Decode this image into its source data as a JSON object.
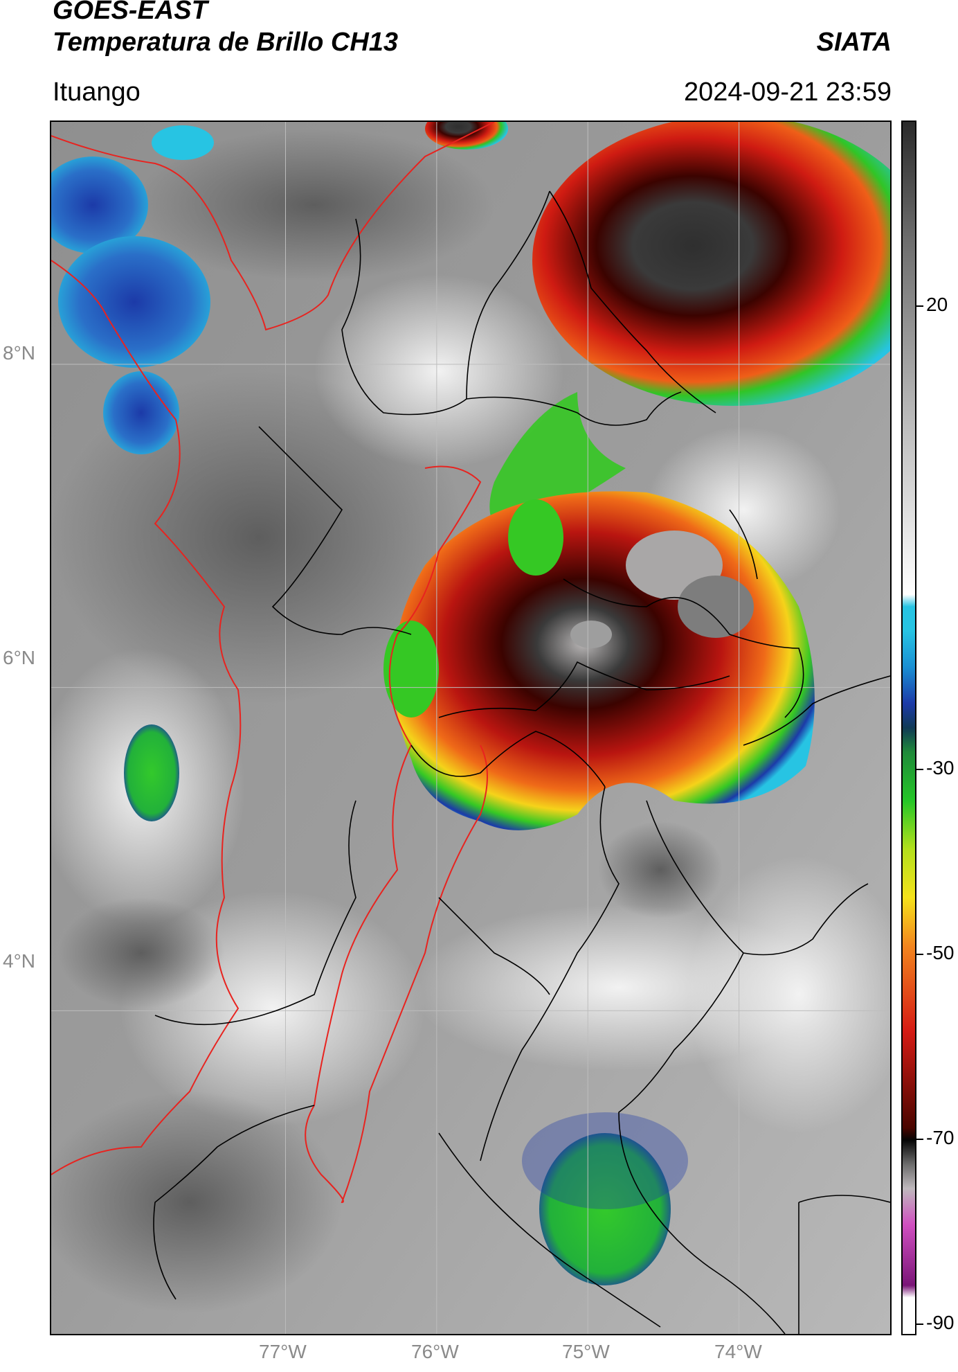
{
  "header": {
    "satellite": "GOES-EAST",
    "product": "Temperatura de Brillo CH13",
    "organization": "SIATA",
    "region": "Ituango",
    "timestamp": "2024-09-21 23:59"
  },
  "map": {
    "lat_labels": [
      "8°N",
      "6°N",
      "4°N"
    ],
    "lon_labels": [
      "77°W",
      "76°W",
      "75°W",
      "74°W"
    ],
    "lat_values": [
      8,
      6,
      4
    ],
    "lon_values": [
      -77,
      -76,
      -75,
      -74
    ],
    "lon_range": [
      -78.55,
      -73.0
    ],
    "lat_range": [
      2.0,
      9.5
    ],
    "boundary_colors": {
      "country": "#e8231f",
      "department": "#000000"
    }
  },
  "colorbar": {
    "tick_labels": [
      "20",
      "-30",
      "-50",
      "-70",
      "-90"
    ],
    "tick_values": [
      20,
      -30,
      -50,
      -70,
      -90
    ],
    "range": [
      -92,
      45
    ],
    "colors": {
      "warm_gray_top": "#2a2a2a",
      "white": "#ffffff",
      "cyan": "#27c4e3",
      "blue": "#1c3aa8",
      "green": "#25c627",
      "yellow": "#f5e21b",
      "orange": "#f2851e",
      "red": "#d51b14",
      "dark_red": "#4a0500",
      "black": "#050505",
      "magenta": "#d04fc0",
      "purple": "#7a1577"
    }
  }
}
